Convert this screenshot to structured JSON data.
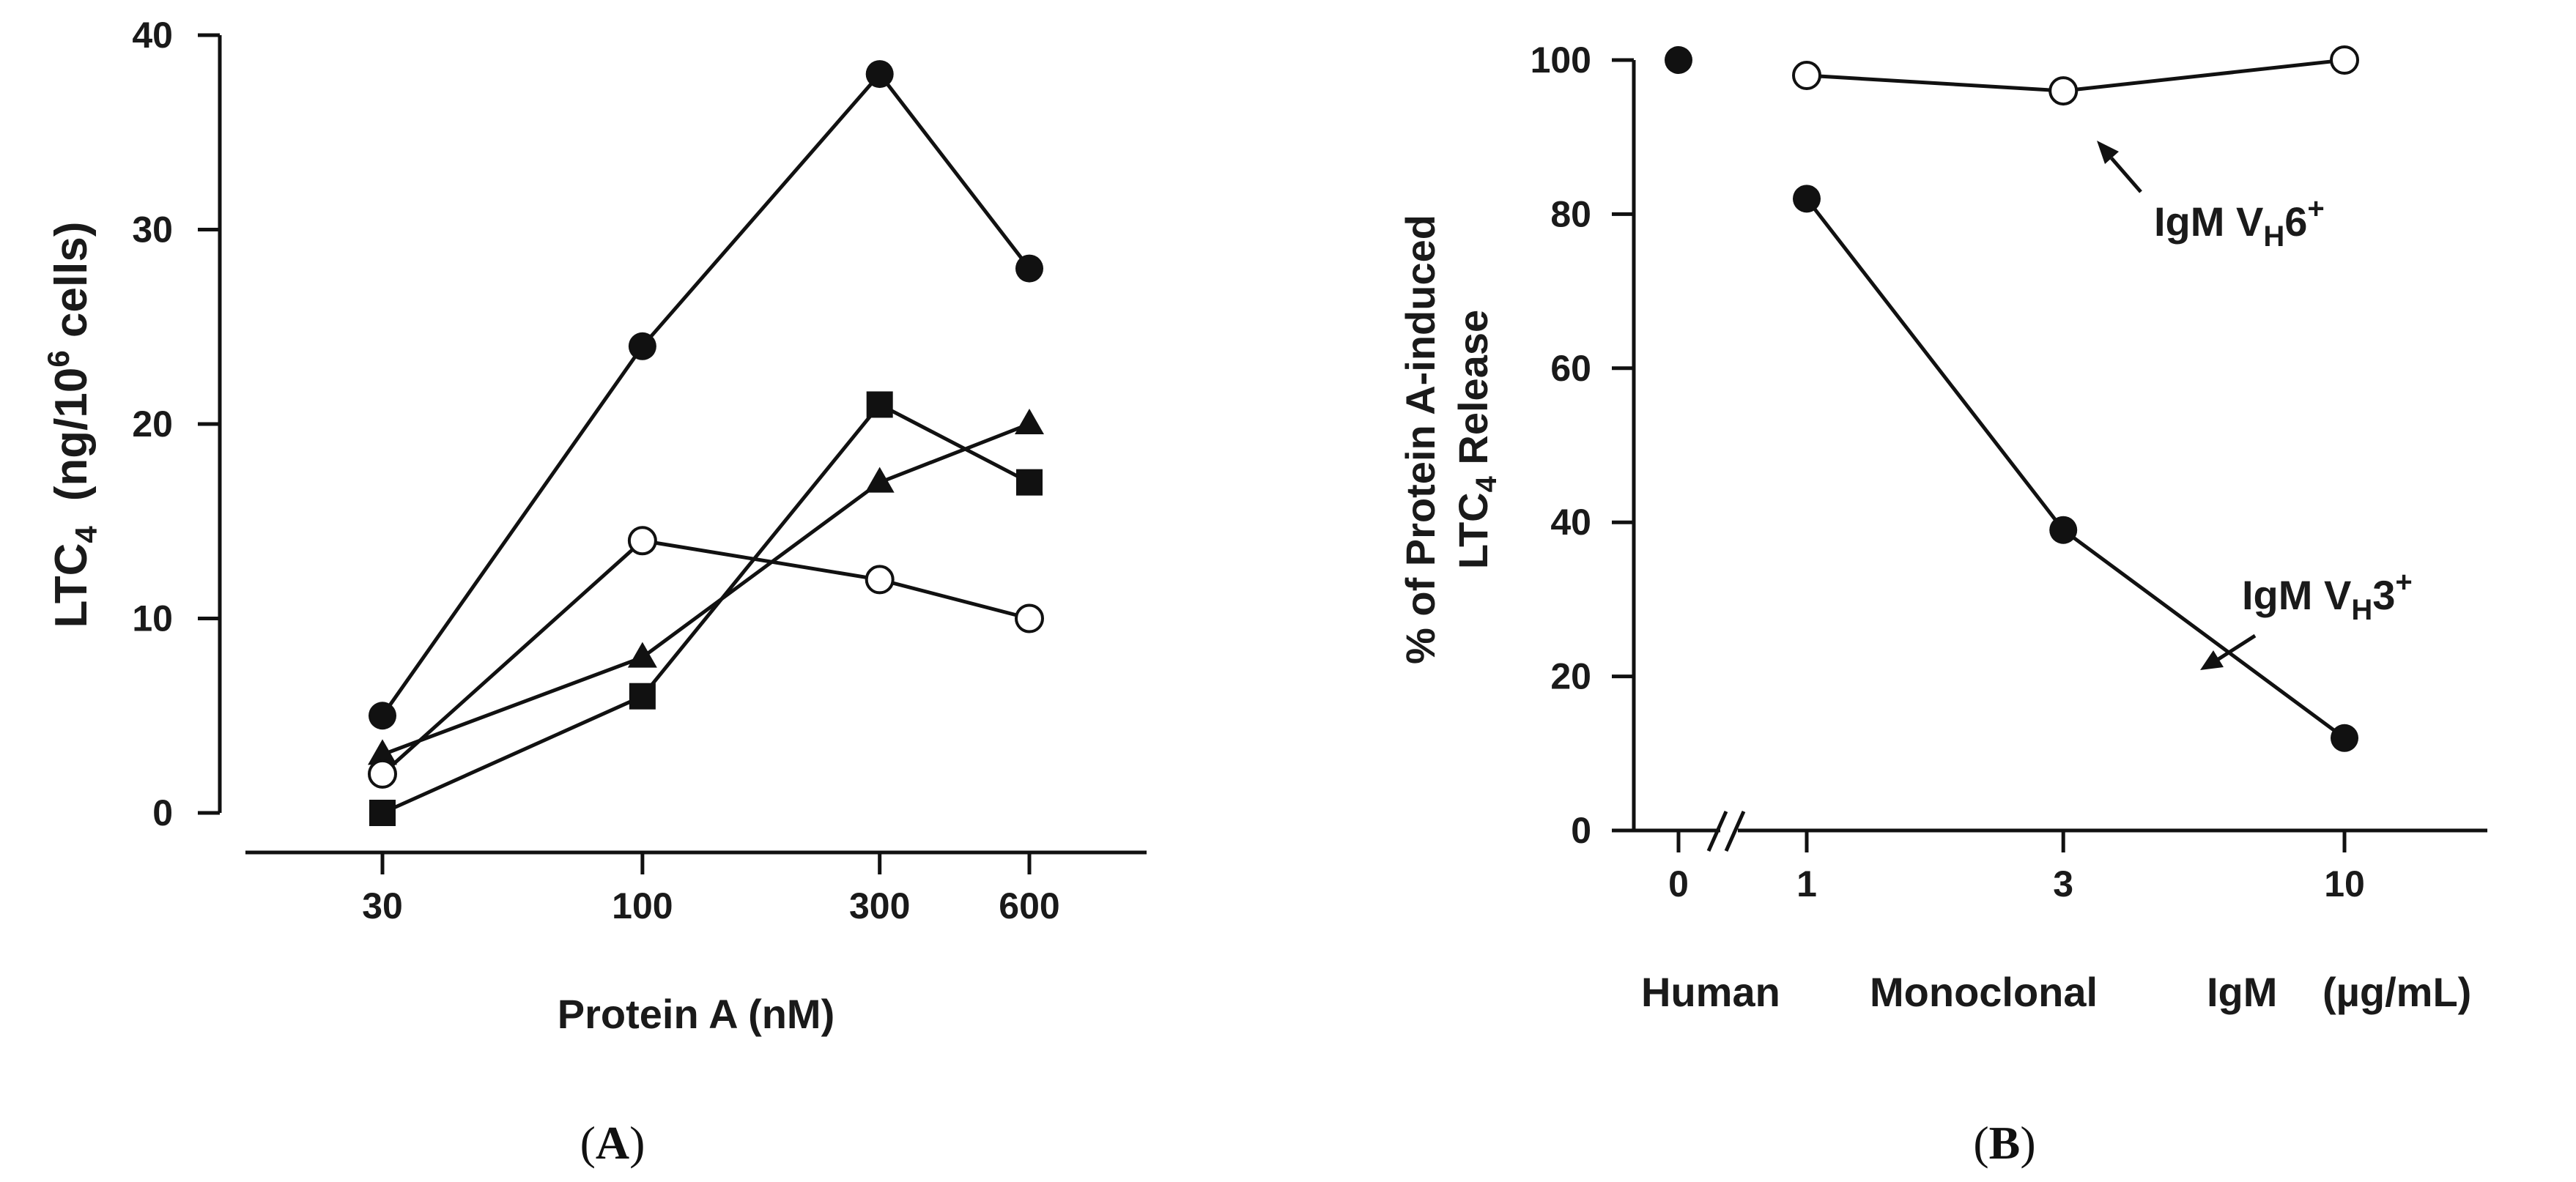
{
  "chart_data": [
    {
      "type": "line",
      "panel_label": "(A)",
      "panel_letter": "A",
      "xlabel": "Protein A (nM)",
      "ylabel": "LTC4 (ng/10^6 cells)",
      "ylabel_parts": {
        "main": "LTC",
        "sub": "4",
        "unit_start": "(ng/10",
        "sup": "6",
        "unit_end": " cells)"
      },
      "x_scale": "log",
      "x": [
        30,
        100,
        300,
        600
      ],
      "xticks": [
        "30",
        "100",
        "300",
        "600"
      ],
      "yticks": [
        "0",
        "10",
        "20",
        "30",
        "40"
      ],
      "ylim": [
        0,
        40
      ],
      "series": [
        {
          "name": "filled circle",
          "marker": "circle-filled",
          "values": [
            5,
            24,
            38,
            28
          ]
        },
        {
          "name": "filled square",
          "marker": "square-filled",
          "values": [
            0,
            6,
            21,
            17
          ]
        },
        {
          "name": "filled triangle",
          "marker": "triangle-filled",
          "values": [
            3,
            8,
            17,
            20
          ]
        },
        {
          "name": "open circle",
          "marker": "circle-open",
          "values": [
            2,
            14,
            12,
            10
          ]
        }
      ]
    },
    {
      "type": "line",
      "panel_label": "(B)",
      "panel_letter": "B",
      "xlabel": "Human Monoclonal IgM (µg/mL)",
      "xlabel_parts": [
        "Human",
        "Monoclonal",
        "IgM",
        "(µg/mL)"
      ],
      "ylabel_line1": "% of Protein A-induced",
      "ylabel_line2_parts": {
        "main": "LTC",
        "sub": "4",
        "rest": " Release"
      },
      "x_scale": "log with axis break",
      "xticks": [
        "0",
        "1",
        "3",
        "10"
      ],
      "yticks": [
        "0",
        "20",
        "40",
        "60",
        "80",
        "100"
      ],
      "ylim": [
        0,
        100
      ],
      "control": {
        "x": 0,
        "value": 100,
        "marker": "circle-filled"
      },
      "series": [
        {
          "name": "IgM VH6+",
          "marker": "circle-open",
          "x": [
            1,
            3,
            10
          ],
          "values": [
            98,
            96,
            100
          ]
        },
        {
          "name": "IgM VH3+",
          "marker": "circle-filled",
          "x": [
            1,
            3,
            10
          ],
          "values": [
            82,
            39,
            12
          ]
        }
      ],
      "annotations": [
        {
          "target": "IgM VH6+",
          "parts": {
            "main": "IgM V",
            "sub": "H",
            "rest": "6",
            "sup": "+"
          }
        },
        {
          "target": "IgM VH3+",
          "parts": {
            "main": "IgM V",
            "sub": "H",
            "rest": "3",
            "sup": "+"
          }
        }
      ]
    }
  ]
}
